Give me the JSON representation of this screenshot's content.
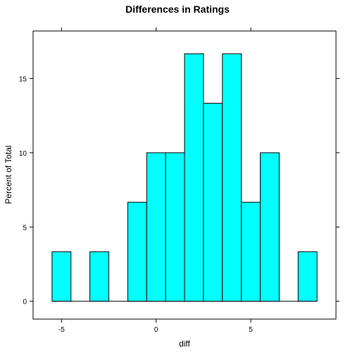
{
  "chart_data": {
    "type": "bar",
    "title": "Differences in Ratings",
    "xlabel": "diff",
    "ylabel": "Percent of Total",
    "xlim": [
      -6.5,
      9.5
    ],
    "ylim": [
      -1.2,
      18.2
    ],
    "bin_width": 1,
    "bins": [
      {
        "x0": -5.5,
        "x1": -4.5,
        "value": 3.333
      },
      {
        "x0": -4.5,
        "x1": -3.5,
        "value": 0
      },
      {
        "x0": -3.5,
        "x1": -2.5,
        "value": 3.333
      },
      {
        "x0": -2.5,
        "x1": -1.5,
        "value": 0
      },
      {
        "x0": -1.5,
        "x1": -0.5,
        "value": 6.667
      },
      {
        "x0": -0.5,
        "x1": 0.5,
        "value": 10
      },
      {
        "x0": 0.5,
        "x1": 1.5,
        "value": 10
      },
      {
        "x0": 1.5,
        "x1": 2.5,
        "value": 16.667
      },
      {
        "x0": 2.5,
        "x1": 3.5,
        "value": 13.333
      },
      {
        "x0": 3.5,
        "x1": 4.5,
        "value": 16.667
      },
      {
        "x0": 4.5,
        "x1": 5.5,
        "value": 6.667
      },
      {
        "x0": 5.5,
        "x1": 6.5,
        "value": 10
      },
      {
        "x0": 6.5,
        "x1": 7.5,
        "value": 0
      },
      {
        "x0": 7.5,
        "x1": 8.5,
        "value": 3.333
      }
    ],
    "x_ticks": [
      -5,
      0,
      5
    ],
    "x_tick_labels": [
      "-5",
      "0",
      "5"
    ],
    "y_ticks": [
      0,
      5,
      10,
      15
    ],
    "y_tick_labels": [
      "0",
      "5",
      "10",
      "15"
    ],
    "bar_color": "#00ffff",
    "grid": false
  }
}
